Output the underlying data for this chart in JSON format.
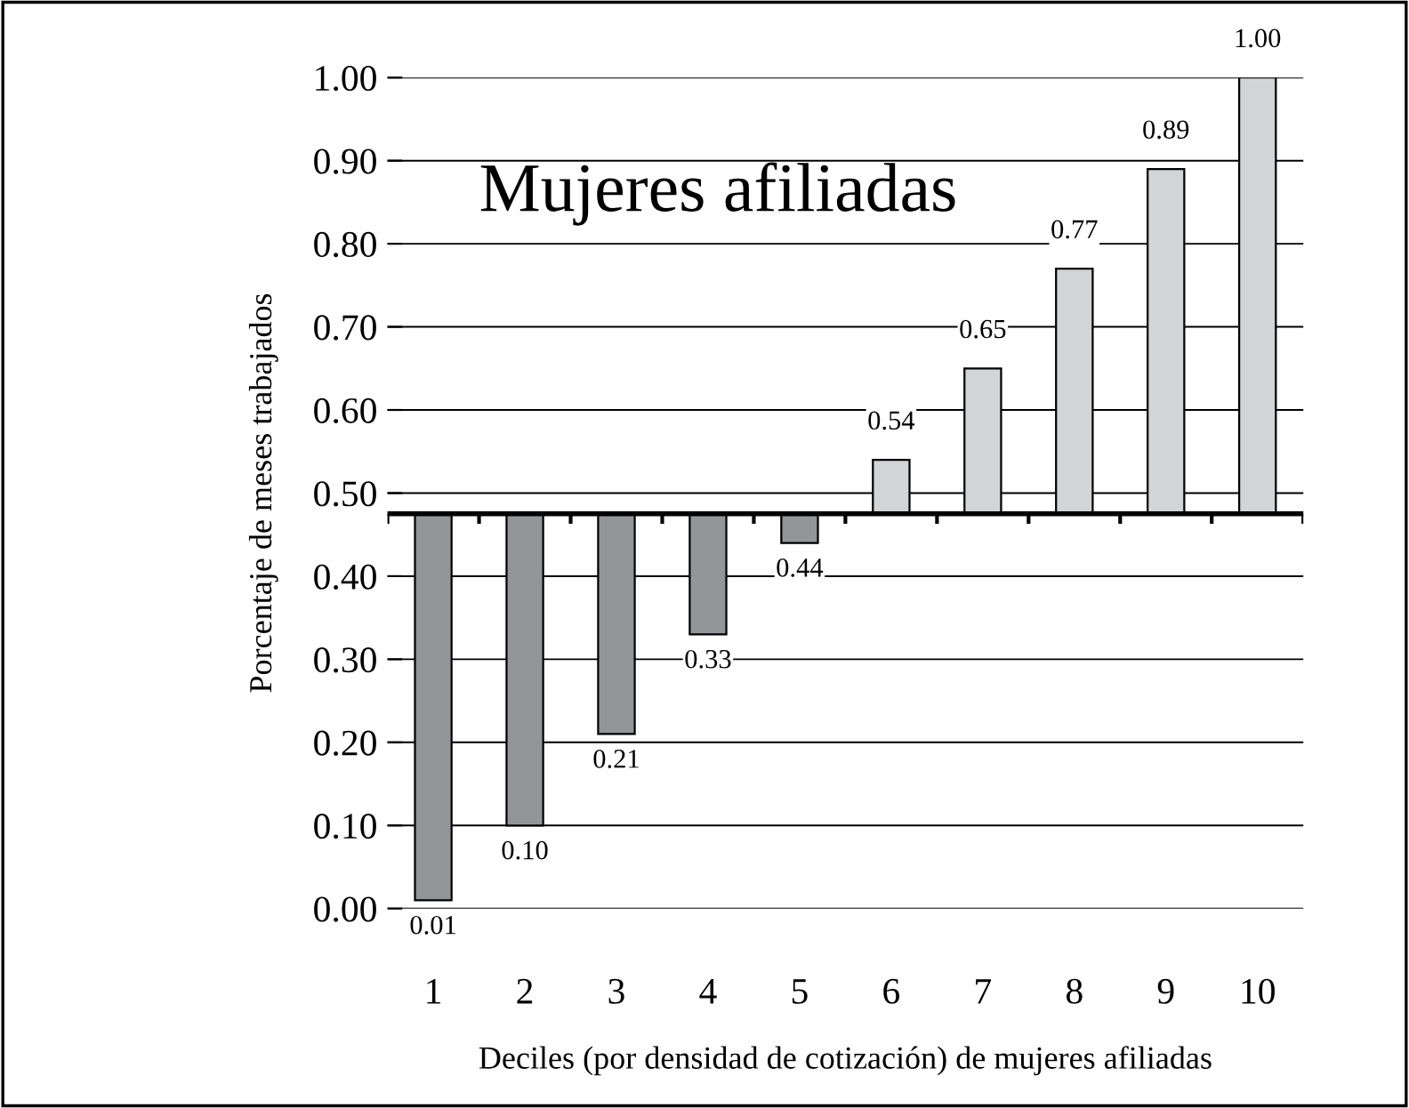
{
  "chart_data": {
    "type": "bar",
    "title": "Mujeres afiliadas",
    "xlabel": "Deciles (por densidad de cotización) de mujeres afiliadas",
    "ylabel": "Porcentaje de meses trabajados",
    "categories": [
      "1",
      "2",
      "3",
      "4",
      "5",
      "6",
      "7",
      "8",
      "9",
      "10"
    ],
    "values": [
      -0.465,
      -0.375,
      -0.265,
      -0.145,
      -0.035,
      0.065,
      0.175,
      0.295,
      0.415,
      0.525
    ],
    "base": [
      0.475,
      0.475,
      0.475,
      0.475,
      0.475,
      0.475,
      0.475,
      0.475,
      0.475,
      0.475
    ],
    "value_labels": [
      "0.01",
      "0.10",
      "0.21",
      "0.33",
      "0.44",
      "0.54",
      "0.65",
      "0.77",
      "0.89",
      "1.00"
    ],
    "colors": [
      "#939598",
      "#939598",
      "#939598",
      "#939598",
      "#939598",
      "#d3d4d6",
      "#d3d4d6",
      "#d3d4d6",
      "#d3d4d6",
      "#d3d4d6"
    ],
    "ylim": [
      0,
      1.0
    ],
    "yticks": [
      {
        "value": 0,
        "label": "0.00"
      },
      {
        "value": 0.1,
        "label": "0.10"
      },
      {
        "value": 0.2,
        "label": "0.20"
      },
      {
        "value": 0.3,
        "label": "0.30"
      },
      {
        "value": 0.4,
        "label": "0.40"
      },
      {
        "value": 0.5,
        "label": "0.50"
      },
      {
        "value": 0.6,
        "label": "0.60"
      },
      {
        "value": 0.7,
        "label": "0.70"
      },
      {
        "value": 0.8,
        "label": "0.80"
      },
      {
        "value": 0.9,
        "label": "0.90"
      },
      {
        "value": 1.0,
        "label": "1.00"
      }
    ],
    "ref_lines": [
      {
        "axis": "y",
        "value": 0.475,
        "color": "#000000"
      }
    ],
    "grid": "y"
  }
}
